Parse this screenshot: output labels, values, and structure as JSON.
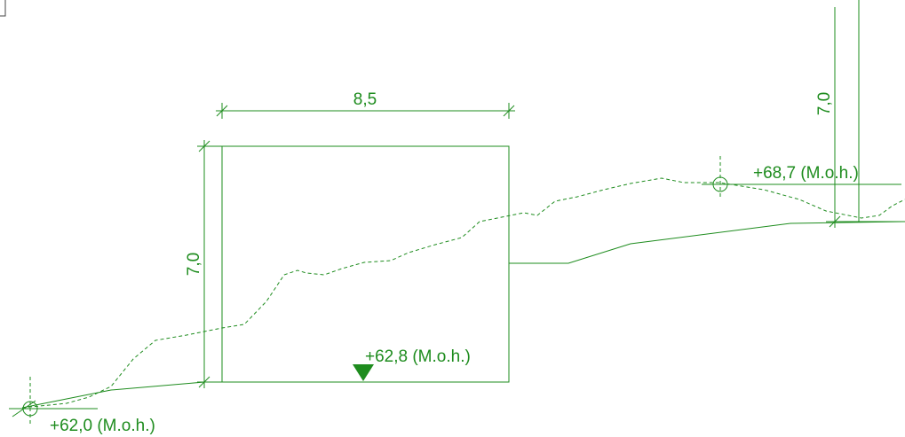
{
  "colors": {
    "line": "#1e8c1e",
    "background": "#ffffff"
  },
  "drawing": {
    "width_dimension": "8,5",
    "height_dimension_left": "7,0",
    "height_dimension_right": "7,0",
    "elevation_left": "+62,0 (M.o.h.)",
    "elevation_floor": "+62,8 (M.o.h.)",
    "elevation_right": "+68,7 (M.o.h.)"
  },
  "icons": {
    "survey_point": "circle-crosshair-icon",
    "level_marker": "triangle-down-icon"
  }
}
